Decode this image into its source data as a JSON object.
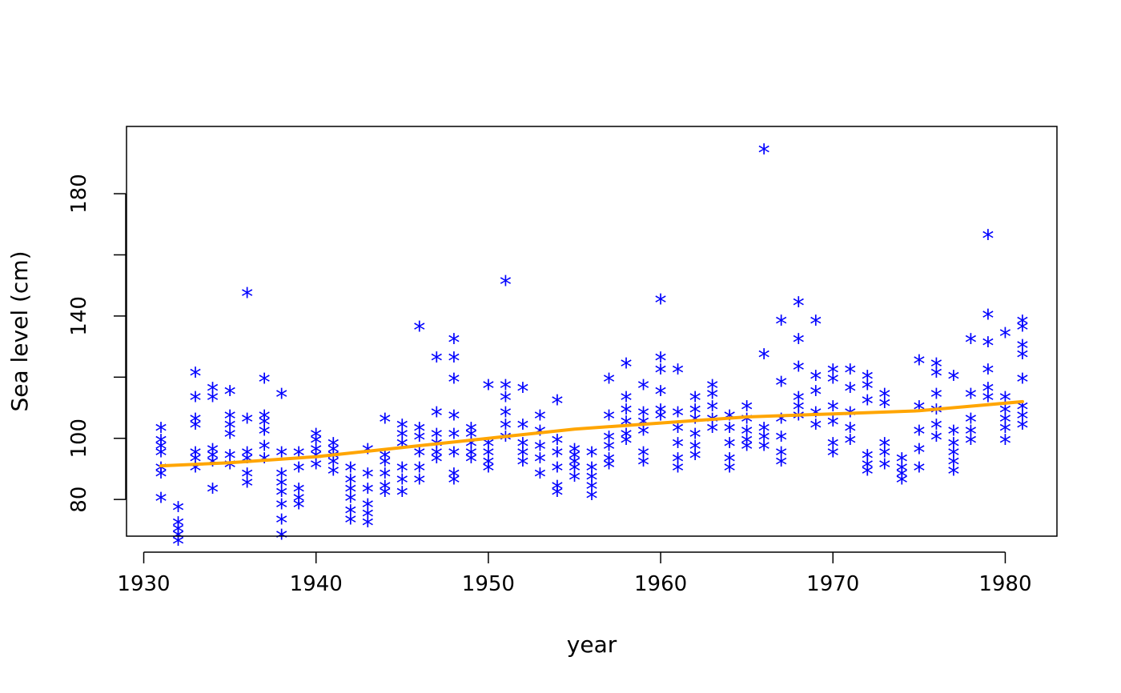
{
  "chart_data": {
    "type": "scatter",
    "title": "",
    "xlabel": "year",
    "ylabel": "Sea level (cm)",
    "xlim": [
      1929,
      1983
    ],
    "ylim": [
      68,
      202
    ],
    "x_ticks": [
      1930,
      1940,
      1950,
      1960,
      1970,
      1980
    ],
    "y_ticks": [
      80,
      100,
      140,
      180
    ],
    "x_tick_labels": [
      "1930",
      "1940",
      "1950",
      "1960",
      "1970",
      "1980"
    ],
    "y_tick_labels": [
      "80",
      "100",
      "140",
      "180"
    ],
    "grid": false,
    "legend": "none",
    "colors": {
      "points": "#0000ff",
      "trend": "#ffa500",
      "axes": "#000000"
    },
    "series": [
      {
        "type": "scatter",
        "marker": "asterisk",
        "points": [
          [
            1931,
            103
          ],
          [
            1931,
            99
          ],
          [
            1931,
            97
          ],
          [
            1931,
            95
          ],
          [
            1931,
            90
          ],
          [
            1931,
            88
          ],
          [
            1931,
            80
          ],
          [
            1932,
            77
          ],
          [
            1932,
            72
          ],
          [
            1932,
            70
          ],
          [
            1932,
            68
          ],
          [
            1932,
            66
          ],
          [
            1933,
            121
          ],
          [
            1933,
            113
          ],
          [
            1933,
            106
          ],
          [
            1933,
            104
          ],
          [
            1933,
            95
          ],
          [
            1933,
            93
          ],
          [
            1933,
            90
          ],
          [
            1934,
            116
          ],
          [
            1934,
            113
          ],
          [
            1934,
            96
          ],
          [
            1934,
            94
          ],
          [
            1934,
            92
          ],
          [
            1934,
            83
          ],
          [
            1935,
            115
          ],
          [
            1935,
            107
          ],
          [
            1935,
            104
          ],
          [
            1935,
            101
          ],
          [
            1935,
            94
          ],
          [
            1935,
            91
          ],
          [
            1936,
            147
          ],
          [
            1936,
            106
          ],
          [
            1936,
            95
          ],
          [
            1936,
            93
          ],
          [
            1936,
            88
          ],
          [
            1936,
            85
          ],
          [
            1937,
            119
          ],
          [
            1937,
            107
          ],
          [
            1937,
            105
          ],
          [
            1937,
            102
          ],
          [
            1937,
            97
          ],
          [
            1937,
            93
          ],
          [
            1938,
            114
          ],
          [
            1938,
            95
          ],
          [
            1938,
            88
          ],
          [
            1938,
            85
          ],
          [
            1938,
            82
          ],
          [
            1938,
            78
          ],
          [
            1938,
            73
          ],
          [
            1938,
            68
          ],
          [
            1939,
            95
          ],
          [
            1939,
            90
          ],
          [
            1939,
            83
          ],
          [
            1939,
            80
          ],
          [
            1939,
            78
          ],
          [
            1940,
            101
          ],
          [
            1940,
            99
          ],
          [
            1940,
            96
          ],
          [
            1940,
            94
          ],
          [
            1940,
            91
          ],
          [
            1941,
            98
          ],
          [
            1941,
            96
          ],
          [
            1941,
            94
          ],
          [
            1941,
            92
          ],
          [
            1941,
            89
          ],
          [
            1942,
            90
          ],
          [
            1942,
            86
          ],
          [
            1942,
            83
          ],
          [
            1942,
            80
          ],
          [
            1942,
            76
          ],
          [
            1942,
            73
          ],
          [
            1943,
            96
          ],
          [
            1943,
            88
          ],
          [
            1943,
            83
          ],
          [
            1943,
            78
          ],
          [
            1943,
            75
          ],
          [
            1943,
            72
          ],
          [
            1944,
            106
          ],
          [
            1944,
            94
          ],
          [
            1944,
            92
          ],
          [
            1944,
            88
          ],
          [
            1944,
            84
          ],
          [
            1944,
            82
          ],
          [
            1945,
            104
          ],
          [
            1945,
            101
          ],
          [
            1945,
            98
          ],
          [
            1945,
            90
          ],
          [
            1945,
            86
          ],
          [
            1945,
            82
          ],
          [
            1946,
            136
          ],
          [
            1946,
            103
          ],
          [
            1946,
            100
          ],
          [
            1946,
            95
          ],
          [
            1946,
            90
          ],
          [
            1946,
            86
          ],
          [
            1947,
            126
          ],
          [
            1947,
            108
          ],
          [
            1947,
            101
          ],
          [
            1947,
            98
          ],
          [
            1947,
            95
          ],
          [
            1947,
            93
          ],
          [
            1948,
            132
          ],
          [
            1948,
            126
          ],
          [
            1948,
            119
          ],
          [
            1948,
            107
          ],
          [
            1948,
            101
          ],
          [
            1948,
            95
          ],
          [
            1948,
            88
          ],
          [
            1948,
            86
          ],
          [
            1949,
            103
          ],
          [
            1949,
            101
          ],
          [
            1949,
            98
          ],
          [
            1949,
            95
          ],
          [
            1949,
            93
          ],
          [
            1950,
            117
          ],
          [
            1950,
            98
          ],
          [
            1950,
            95
          ],
          [
            1950,
            92
          ],
          [
            1950,
            90
          ],
          [
            1951,
            151
          ],
          [
            1951,
            117
          ],
          [
            1951,
            113
          ],
          [
            1951,
            108
          ],
          [
            1951,
            104
          ],
          [
            1951,
            100
          ],
          [
            1952,
            116
          ],
          [
            1952,
            104
          ],
          [
            1952,
            98
          ],
          [
            1952,
            95
          ],
          [
            1952,
            92
          ],
          [
            1953,
            107
          ],
          [
            1953,
            102
          ],
          [
            1953,
            97
          ],
          [
            1953,
            93
          ],
          [
            1953,
            88
          ],
          [
            1954,
            112
          ],
          [
            1954,
            99
          ],
          [
            1954,
            95
          ],
          [
            1954,
            90
          ],
          [
            1954,
            84
          ],
          [
            1954,
            82
          ],
          [
            1955,
            96
          ],
          [
            1955,
            94
          ],
          [
            1955,
            92
          ],
          [
            1955,
            90
          ],
          [
            1955,
            87
          ],
          [
            1956,
            95
          ],
          [
            1956,
            90
          ],
          [
            1956,
            87
          ],
          [
            1956,
            84
          ],
          [
            1956,
            81
          ],
          [
            1957,
            119
          ],
          [
            1957,
            107
          ],
          [
            1957,
            100
          ],
          [
            1957,
            97
          ],
          [
            1957,
            93
          ],
          [
            1957,
            91
          ],
          [
            1958,
            124
          ],
          [
            1958,
            113
          ],
          [
            1958,
            109
          ],
          [
            1958,
            105
          ],
          [
            1958,
            101
          ],
          [
            1958,
            99
          ],
          [
            1959,
            117
          ],
          [
            1959,
            108
          ],
          [
            1959,
            105
          ],
          [
            1959,
            102
          ],
          [
            1959,
            95
          ],
          [
            1959,
            92
          ],
          [
            1960,
            145
          ],
          [
            1960,
            126
          ],
          [
            1960,
            122
          ],
          [
            1960,
            115
          ],
          [
            1960,
            109
          ],
          [
            1960,
            107
          ],
          [
            1961,
            122
          ],
          [
            1961,
            108
          ],
          [
            1961,
            103
          ],
          [
            1961,
            98
          ],
          [
            1961,
            93
          ],
          [
            1961,
            90
          ],
          [
            1962,
            113
          ],
          [
            1962,
            109
          ],
          [
            1962,
            106
          ],
          [
            1962,
            101
          ],
          [
            1962,
            97
          ],
          [
            1962,
            94
          ],
          [
            1963,
            117
          ],
          [
            1963,
            114
          ],
          [
            1963,
            110
          ],
          [
            1963,
            106
          ],
          [
            1963,
            103
          ],
          [
            1964,
            107
          ],
          [
            1964,
            103
          ],
          [
            1964,
            98
          ],
          [
            1964,
            93
          ],
          [
            1964,
            90
          ],
          [
            1965,
            110
          ],
          [
            1965,
            106
          ],
          [
            1965,
            102
          ],
          [
            1965,
            99
          ],
          [
            1965,
            97
          ],
          [
            1966,
            194
          ],
          [
            1966,
            127
          ],
          [
            1966,
            103
          ],
          [
            1966,
            100
          ],
          [
            1966,
            97
          ],
          [
            1967,
            138
          ],
          [
            1967,
            118
          ],
          [
            1967,
            106
          ],
          [
            1967,
            100
          ],
          [
            1967,
            95
          ],
          [
            1967,
            92
          ],
          [
            1968,
            144
          ],
          [
            1968,
            132
          ],
          [
            1968,
            123
          ],
          [
            1968,
            113
          ],
          [
            1968,
            110
          ],
          [
            1968,
            107
          ],
          [
            1969,
            138
          ],
          [
            1969,
            120
          ],
          [
            1969,
            115
          ],
          [
            1969,
            108
          ],
          [
            1969,
            104
          ],
          [
            1970,
            122
          ],
          [
            1970,
            119
          ],
          [
            1970,
            110
          ],
          [
            1970,
            105
          ],
          [
            1970,
            98
          ],
          [
            1970,
            95
          ],
          [
            1971,
            122
          ],
          [
            1971,
            116
          ],
          [
            1971,
            108
          ],
          [
            1971,
            103
          ],
          [
            1971,
            99
          ],
          [
            1972,
            120
          ],
          [
            1972,
            117
          ],
          [
            1972,
            112
          ],
          [
            1972,
            94
          ],
          [
            1972,
            91
          ],
          [
            1972,
            89
          ],
          [
            1973,
            114
          ],
          [
            1973,
            111
          ],
          [
            1973,
            98
          ],
          [
            1973,
            95
          ],
          [
            1973,
            91
          ],
          [
            1974,
            93
          ],
          [
            1974,
            90
          ],
          [
            1974,
            88
          ],
          [
            1974,
            86
          ],
          [
            1975,
            125
          ],
          [
            1975,
            110
          ],
          [
            1975,
            102
          ],
          [
            1975,
            96
          ],
          [
            1975,
            90
          ],
          [
            1976,
            124
          ],
          [
            1976,
            121
          ],
          [
            1976,
            114
          ],
          [
            1976,
            109
          ],
          [
            1976,
            104
          ],
          [
            1976,
            100
          ],
          [
            1977,
            120
          ],
          [
            1977,
            102
          ],
          [
            1977,
            98
          ],
          [
            1977,
            95
          ],
          [
            1977,
            92
          ],
          [
            1977,
            89
          ],
          [
            1978,
            132
          ],
          [
            1978,
            114
          ],
          [
            1978,
            106
          ],
          [
            1978,
            102
          ],
          [
            1978,
            99
          ],
          [
            1979,
            166
          ],
          [
            1979,
            140
          ],
          [
            1979,
            131
          ],
          [
            1979,
            122
          ],
          [
            1979,
            116
          ],
          [
            1979,
            113
          ],
          [
            1980,
            134
          ],
          [
            1980,
            113
          ],
          [
            1980,
            109
          ],
          [
            1980,
            106
          ],
          [
            1980,
            103
          ],
          [
            1980,
            99
          ],
          [
            1981,
            138
          ],
          [
            1981,
            136
          ],
          [
            1981,
            130
          ],
          [
            1981,
            127
          ],
          [
            1981,
            119
          ],
          [
            1981,
            110
          ],
          [
            1981,
            107
          ],
          [
            1981,
            104
          ]
        ]
      },
      {
        "type": "line",
        "points": [
          [
            1931,
            91
          ],
          [
            1935,
            92
          ],
          [
            1940,
            94
          ],
          [
            1945,
            97
          ],
          [
            1950,
            100
          ],
          [
            1955,
            103
          ],
          [
            1960,
            105
          ],
          [
            1965,
            107
          ],
          [
            1970,
            108
          ],
          [
            1975,
            109
          ],
          [
            1981,
            112
          ]
        ]
      }
    ]
  }
}
